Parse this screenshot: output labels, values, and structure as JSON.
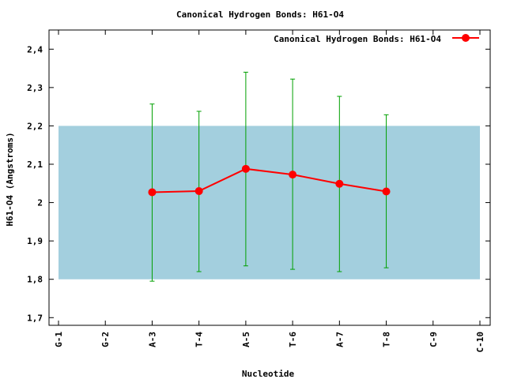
{
  "chart_data": {
    "type": "line",
    "title": "Canonical Hydrogen Bonds: H61-O4",
    "xlabel": "Nucleotide",
    "ylabel": "H61-O4 (Angstroms)",
    "categories": [
      "G-1",
      "G-2",
      "A-3",
      "T-4",
      "A-5",
      "T-6",
      "A-7",
      "T-8",
      "C-9",
      "C-10"
    ],
    "yticks": [
      "1,7",
      "1,8",
      "1,9",
      "2",
      "2,1",
      "2,2",
      "2,3",
      "2,4"
    ],
    "ylim": [
      1.68,
      2.45
    ],
    "band": {
      "from": 1.8,
      "to": 2.2,
      "color": "#a3cfde"
    },
    "series": [
      {
        "name": "Canonical Hydrogen Bonds: H61-O4",
        "color": "#ff0000",
        "errorbar_color": "#00a000",
        "points": [
          {
            "x": "A-3",
            "y": 2.027,
            "err_low": 1.795,
            "err_high": 2.257
          },
          {
            "x": "T-4",
            "y": 2.03,
            "err_low": 1.82,
            "err_high": 2.238
          },
          {
            "x": "A-5",
            "y": 2.088,
            "err_low": 1.835,
            "err_high": 2.34
          },
          {
            "x": "T-6",
            "y": 2.073,
            "err_low": 1.826,
            "err_high": 2.322
          },
          {
            "x": "A-7",
            "y": 2.049,
            "err_low": 1.82,
            "err_high": 2.277
          },
          {
            "x": "T-8",
            "y": 2.029,
            "err_low": 1.83,
            "err_high": 2.229
          }
        ]
      }
    ],
    "legend_position": "top-right",
    "grid": false
  }
}
